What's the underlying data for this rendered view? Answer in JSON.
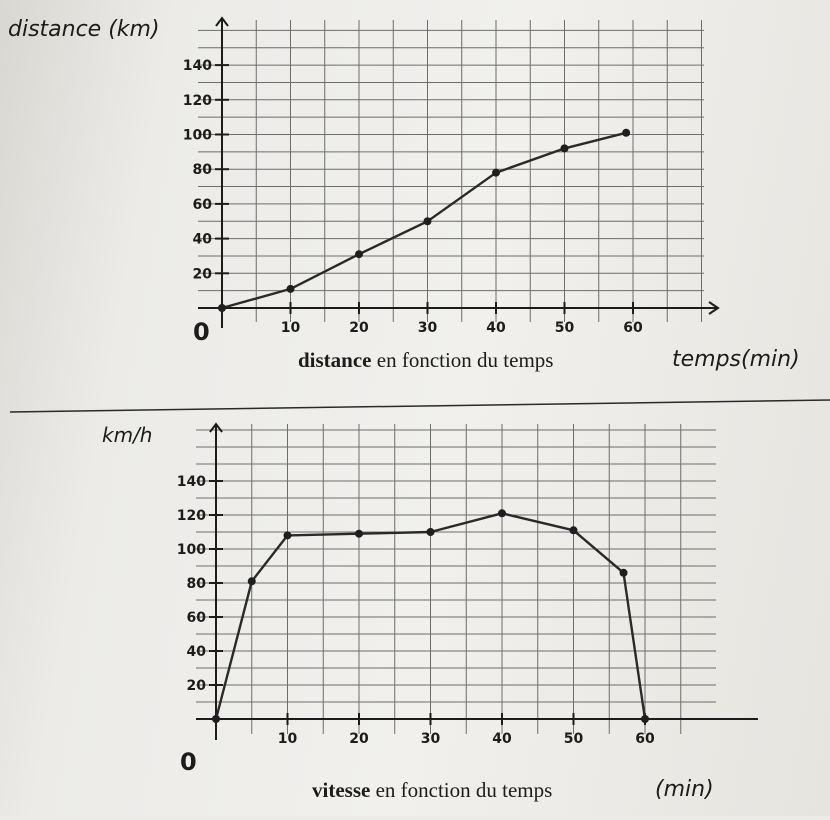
{
  "chart_data": [
    {
      "type": "line",
      "ylabel": "distance (km)",
      "xlabel": "temps(min)",
      "caption_bold": "distance",
      "caption_rest": " en fonction du temps",
      "origin_label": "0",
      "x_ticks": [
        "10",
        "20",
        "30",
        "40",
        "50",
        "60"
      ],
      "y_ticks": [
        "20",
        "40",
        "60",
        "80",
        "100",
        "120",
        "140"
      ],
      "xlim": [
        0,
        70
      ],
      "ylim": [
        0,
        160
      ],
      "grid": true,
      "series": [
        {
          "x": [
            0,
            10,
            20,
            30,
            40,
            50,
            59
          ],
          "y": [
            0,
            11,
            31,
            50,
            78,
            92,
            101
          ]
        }
      ]
    },
    {
      "type": "line",
      "ylabel": "km/h",
      "xlabel": "(min)",
      "caption_bold": "vitesse",
      "caption_rest": " en fonction du temps",
      "origin_label": "0",
      "x_ticks": [
        "10",
        "20",
        "30",
        "40",
        "50",
        "60"
      ],
      "y_ticks": [
        "20",
        "40",
        "60",
        "80",
        "100",
        "120",
        "140"
      ],
      "xlim": [
        0,
        70
      ],
      "ylim": [
        0,
        160
      ],
      "grid": true,
      "series": [
        {
          "x": [
            0,
            5,
            10,
            20,
            30,
            40,
            50,
            57,
            60
          ],
          "y": [
            0,
            81,
            108,
            109,
            110,
            121,
            111,
            86,
            0
          ]
        }
      ]
    }
  ]
}
